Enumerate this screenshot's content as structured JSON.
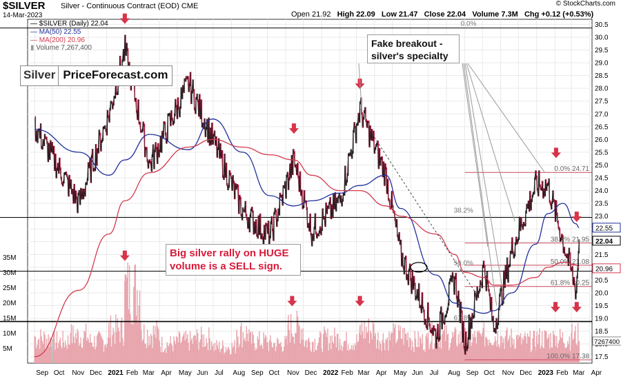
{
  "header": {
    "ticker": "$SILVER",
    "subtitle": "Silver - Continuous Contract (EOD)  CME",
    "date": "14-Mar-2023",
    "copyright": "© StockCharts.com",
    "quote": {
      "open": "Open 21.92",
      "high": "High 22.09",
      "low": "Low 21.47",
      "close": "Close 22.04",
      "volume": "Volume 7.3M",
      "chg": "Chg +0.12 (+0.53%)"
    }
  },
  "legend": {
    "price": "$SILVER (Daily) 22.04",
    "ma50": "MA(50) 22.55",
    "ma200": "MA(200) 20.96",
    "volume": "Volume 7,267,400"
  },
  "brand": {
    "part1": "Silver",
    "part2": "PriceForecast.com"
  },
  "annotations": {
    "fake_breakout": [
      "Fake breakout -",
      "silver's specialty"
    ],
    "rally": [
      "Big silver rally on HUGE",
      "volume is a SELL sign."
    ]
  },
  "colors": {
    "price": "#1a1a1a",
    "price_down": "#b0153a",
    "ma50": "#1f2f9a",
    "ma200": "#d23a4d",
    "fib": "#c7455a",
    "arrow": "#d7334a",
    "volume": "#e8a5ad",
    "grid": "#e9e9e9",
    "badge_price": "#000000",
    "badge_ma50": "#1f2f9a",
    "badge_ma200": "#d23a4d"
  },
  "chart_data": {
    "type": "line",
    "title": "$SILVER Silver - Continuous Contract (EOD)",
    "x": [
      "2020-09-01",
      "2020-11-15",
      "2021-01-05",
      "2021-02-01",
      "2021-03-15",
      "2021-05-20",
      "2021-06-30",
      "2021-08-20",
      "2021-10-05",
      "2021-11-15",
      "2021-12-15",
      "2022-02-01",
      "2022-03-07",
      "2022-04-20",
      "2022-05-15",
      "2022-07-14",
      "2022-08-15",
      "2022-09-01",
      "2022-10-04",
      "2022-10-20",
      "2022-11-20",
      "2022-12-30",
      "2023-01-20",
      "2023-02-15",
      "2023-03-09",
      "2023-03-14"
    ],
    "series": [
      {
        "name": "$SILVER (Daily)",
        "values": [
          26.5,
          23.5,
          27.0,
          29.5,
          25.0,
          28.2,
          26.0,
          23.2,
          22.2,
          25.2,
          22.4,
          23.6,
          27.2,
          24.6,
          21.5,
          18.3,
          20.6,
          18.0,
          21.1,
          18.6,
          21.7,
          24.2,
          24.2,
          22.0,
          20.1,
          22.04
        ]
      },
      {
        "name": "MA(50)",
        "values": [
          26.4,
          25.5,
          24.6,
          25.2,
          26.2,
          25.6,
          26.8,
          25.5,
          23.8,
          23.4,
          23.6,
          23.9,
          24.2,
          24.6,
          23.3,
          20.7,
          19.6,
          19.4,
          19.2,
          19.3,
          20.0,
          21.9,
          23.1,
          23.5,
          22.7,
          22.55
        ]
      },
      {
        "name": "MA(200)",
        "values": [
          17.5,
          20.1,
          22.3,
          23.6,
          24.7,
          25.7,
          26.0,
          25.7,
          25.4,
          25.2,
          24.6,
          24.0,
          24.0,
          23.4,
          23.0,
          22.3,
          21.5,
          20.8,
          20.6,
          20.3,
          20.3,
          20.6,
          21.0,
          21.2,
          21.1,
          20.96
        ]
      }
    ],
    "fib_levels": [
      {
        "label": "0.0% 24.71",
        "value": 24.71
      },
      {
        "label": "38.2% 21.95",
        "value": 21.95
      },
      {
        "label": "50.0% 21.08",
        "value": 21.08
      },
      {
        "label": "61.8% 20.25",
        "value": 20.25
      },
      {
        "label": "100.0% 17.38",
        "value": 17.38
      }
    ],
    "fib_left_labels": [
      {
        "label": "0.0%",
        "value": 30.36
      },
      {
        "label": "38.2%",
        "value": 23.06
      },
      {
        "label": "50.0%",
        "value": 21.0
      },
      {
        "label": "61.8%",
        "value": 18.85
      }
    ],
    "horizontal_lines": [
      30.36,
      22.95,
      20.85,
      18.88
    ],
    "price_badges": [
      {
        "text": "22.55",
        "value": 22.55,
        "role": "ma50"
      },
      {
        "text": "22.04",
        "value": 22.04,
        "role": "price"
      },
      {
        "text": "20.96",
        "value": 20.96,
        "role": "ma200"
      }
    ],
    "volume_badge": "7267400",
    "y_ticks": [
      "30.5",
      "30.0",
      "29.5",
      "29.0",
      "28.5",
      "28.0",
      "27.5",
      "27.0",
      "26.5",
      "26.0",
      "25.5",
      "25.0",
      "24.5",
      "24.0",
      "23.5",
      "23.0",
      "22.5",
      "22.0",
      "21.5",
      "21.0",
      "20.5",
      "20.0",
      "19.5",
      "19.0",
      "18.5",
      "18.0",
      "17.5"
    ],
    "ylim": [
      17.25,
      30.7
    ],
    "volume_ticks": [
      "35M",
      "30M",
      "25M",
      "20M",
      "15M",
      "10M",
      "5M"
    ],
    "volume_ylim": [
      0,
      38
    ],
    "volume_series": [
      {
        "date": "2020-09-01",
        "value": 9
      },
      {
        "date": "2020-10-01",
        "value": 8
      },
      {
        "date": "2020-11-01",
        "value": 10
      },
      {
        "date": "2020-12-01",
        "value": 8
      },
      {
        "date": "2021-01-05",
        "value": 12
      },
      {
        "date": "2021-02-01",
        "value": 27
      },
      {
        "date": "2021-03-01",
        "value": 11
      },
      {
        "date": "2021-04-01",
        "value": 7
      },
      {
        "date": "2021-05-01",
        "value": 8
      },
      {
        "date": "2021-06-01",
        "value": 9
      },
      {
        "date": "2021-07-01",
        "value": 6
      },
      {
        "date": "2021-08-10",
        "value": 11
      },
      {
        "date": "2021-09-01",
        "value": 8
      },
      {
        "date": "2021-10-01",
        "value": 7
      },
      {
        "date": "2021-11-05",
        "value": 13
      },
      {
        "date": "2021-12-01",
        "value": 8
      },
      {
        "date": "2022-01-05",
        "value": 9
      },
      {
        "date": "2022-02-01",
        "value": 8
      },
      {
        "date": "2022-03-07",
        "value": 12
      },
      {
        "date": "2022-04-01",
        "value": 9
      },
      {
        "date": "2022-05-01",
        "value": 10
      },
      {
        "date": "2022-06-01",
        "value": 8
      },
      {
        "date": "2022-07-01",
        "value": 10
      },
      {
        "date": "2022-08-01",
        "value": 9
      },
      {
        "date": "2022-09-01",
        "value": 9
      },
      {
        "date": "2022-10-01",
        "value": 10
      },
      {
        "date": "2022-11-01",
        "value": 9
      },
      {
        "date": "2022-12-01",
        "value": 8
      },
      {
        "date": "2023-01-01",
        "value": 9
      },
      {
        "date": "2023-02-01",
        "value": 9
      },
      {
        "date": "2023-03-01",
        "value": 10
      },
      {
        "date": "2023-03-14",
        "value": 7.3
      }
    ],
    "arrows": [
      {
        "date": "2021-02-01",
        "value": 30.55
      },
      {
        "date": "2021-11-15",
        "value": 26.25
      },
      {
        "date": "2022-03-07",
        "value": 28.0
      },
      {
        "date": "2023-02-03",
        "value": 25.3
      },
      {
        "date": "2023-03-10",
        "value": 22.8
      }
    ],
    "volume_arrows": [
      {
        "date": "2021-02-01",
        "value": 34
      },
      {
        "date": "2021-11-12",
        "value": 19
      },
      {
        "date": "2022-03-07",
        "value": 19
      },
      {
        "date": "2023-02-02",
        "value": 17
      },
      {
        "date": "2023-03-10",
        "value": 17
      }
    ],
    "month_labels": [
      {
        "label": "Sep",
        "date": "2020-09-01"
      },
      {
        "label": "Oct",
        "date": "2020-10-01"
      },
      {
        "label": "Nov",
        "date": "2020-11-01"
      },
      {
        "label": "Dec",
        "date": "2020-12-01"
      },
      {
        "label": "2021",
        "date": "2021-01-01",
        "bold": true
      },
      {
        "label": "Feb",
        "date": "2021-02-01"
      },
      {
        "label": "Mar",
        "date": "2021-03-01"
      },
      {
        "label": "Apr",
        "date": "2021-04-01"
      },
      {
        "label": "May",
        "date": "2021-05-01"
      },
      {
        "label": "Jun",
        "date": "2021-06-01"
      },
      {
        "label": "Jul",
        "date": "2021-07-01"
      },
      {
        "label": "Aug",
        "date": "2021-08-01"
      },
      {
        "label": "Sep",
        "date": "2021-09-01"
      },
      {
        "label": "Oct",
        "date": "2021-10-01"
      },
      {
        "label": "Nov",
        "date": "2021-11-01"
      },
      {
        "label": "Dec",
        "date": "2021-12-01"
      },
      {
        "label": "2022",
        "date": "2022-01-01",
        "bold": true
      },
      {
        "label": "Feb",
        "date": "2022-02-01"
      },
      {
        "label": "Mar",
        "date": "2022-03-01"
      },
      {
        "label": "Apr",
        "date": "2022-04-01"
      },
      {
        "label": "May",
        "date": "2022-05-01"
      },
      {
        "label": "Jun",
        "date": "2022-06-01"
      },
      {
        "label": "Jul",
        "date": "2022-07-01"
      },
      {
        "label": "Aug",
        "date": "2022-08-01"
      },
      {
        "label": "Sep",
        "date": "2022-09-01"
      },
      {
        "label": "Oct",
        "date": "2022-10-01"
      },
      {
        "label": "Nov",
        "date": "2022-11-01"
      },
      {
        "label": "Dec",
        "date": "2022-12-01"
      },
      {
        "label": "2023",
        "date": "2023-01-01",
        "bold": true
      },
      {
        "label": "Feb",
        "date": "2023-02-01"
      },
      {
        "label": "Mar",
        "date": "2023-03-01"
      },
      {
        "label": "Apr",
        "date": "2023-04-01"
      }
    ],
    "x_range": [
      "2020-08-20",
      "2023-04-05"
    ],
    "grid": true,
    "legend_position": "top-left"
  }
}
